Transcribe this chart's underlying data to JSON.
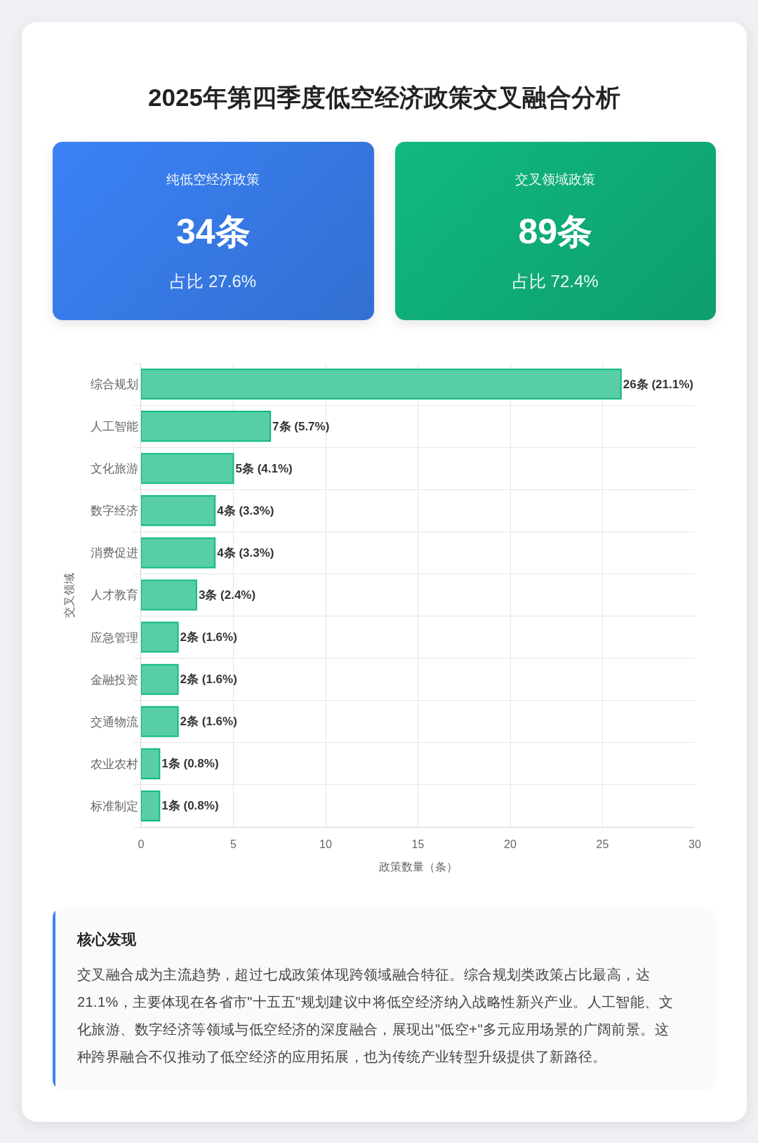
{
  "chart_data": [
    {
      "type": "other",
      "title": "2025年第四季度低空经济政策交叉融合分析"
    },
    {
      "type": "other",
      "title": "纯低空经济政策",
      "annotations": [
        "34条",
        "占比 27.6%"
      ],
      "color": "#3b82f6"
    },
    {
      "type": "other",
      "title": "交叉领域政策",
      "annotations": [
        "89条",
        "占比 72.4%"
      ],
      "color": "#10b981"
    },
    {
      "type": "bar",
      "orientation": "horizontal",
      "categories": [
        "综合规划",
        "人工智能",
        "文化旅游",
        "数字经济",
        "消费促进",
        "人才教育",
        "应急管理",
        "金融投资",
        "交通物流",
        "农业农村",
        "标准制定"
      ],
      "values": [
        26,
        7,
        5,
        4,
        4,
        3,
        2,
        2,
        2,
        1,
        1
      ],
      "value_labels": [
        "26条 (21.1%)",
        "7条 (5.7%)",
        "5条 (4.1%)",
        "4条 (3.3%)",
        "4条 (3.3%)",
        "3条 (2.4%)",
        "2条 (1.6%)",
        "2条 (1.6%)",
        "2条 (1.6%)",
        "1条 (0.8%)",
        "1条 (0.8%)"
      ],
      "color": "#58cea7",
      "xlim": [
        0,
        30
      ],
      "xticks": [
        0,
        5,
        10,
        15,
        20,
        25,
        30
      ],
      "xlabel": "政策数量（条）",
      "ylabel": "交叉领域",
      "grid": true
    },
    {
      "type": "other",
      "title": "核心发现",
      "annotations": [
        "交叉融合成为主流趋势，超过七成政策体现跨领域融合特征。综合规划类政策占比最高，达21.1%，主要体现在各省市\"十五五\"规划建议中将低空经济纳入战略性新兴产业。人工智能、文化旅游、数字经济等领域与低空经济的深度融合，展现出\"低空+\"多元应用场景的广阔前景。这种跨界融合不仅推动了低空经济的应用拓展，也为传统产业转型升级提供了新路径。"
      ]
    }
  ]
}
